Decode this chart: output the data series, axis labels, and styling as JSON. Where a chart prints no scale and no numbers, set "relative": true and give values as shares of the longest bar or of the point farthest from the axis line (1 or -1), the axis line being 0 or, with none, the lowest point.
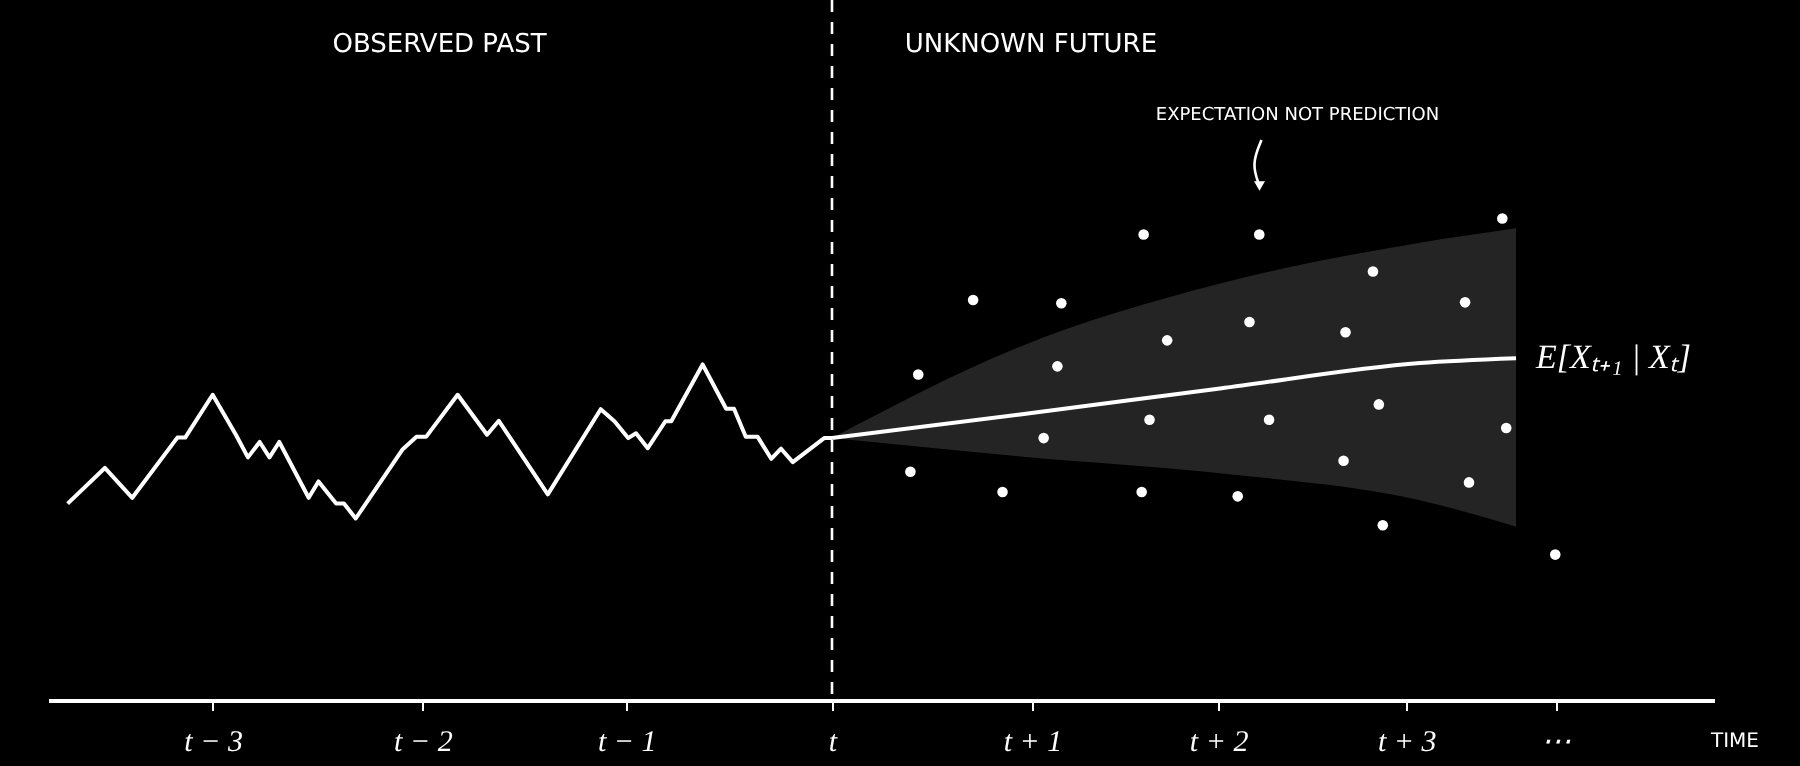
{
  "chart_data": {
    "type": "line",
    "relative": true,
    "xlabel": "TIME",
    "annotations": [
      "OBSERVED PAST",
      "UNKNOWN FUTURE",
      "EXPECTATION NOT PREDICTION"
    ],
    "xlim": [
      -4,
      4.5
    ],
    "xticks": [
      {
        "value": -3.16,
        "label": "t − 3"
      },
      {
        "value": -2.09,
        "label": "t − 2"
      },
      {
        "value": -1.05,
        "label": "t − 1"
      },
      {
        "value": 0,
        "label": "t"
      },
      {
        "value": 1.02,
        "label": "t + 1"
      },
      {
        "value": 1.97,
        "label": "t + 2"
      },
      {
        "value": 2.93,
        "label": "t + 3"
      },
      {
        "value": 3.69,
        "label": "⋯"
      }
    ],
    "tick_labels": "x",
    "grid": false,
    "ref_lines": [
      {
        "axis": "x",
        "value": 0,
        "label": null,
        "color": "#ffffff",
        "line_style": "dashed"
      }
    ],
    "series": [
      {
        "color": "#ffffff",
        "x": [
          -3.9,
          -3.71,
          -3.57,
          -3.34,
          -3.3,
          -3.16,
          -3.04,
          -2.98,
          -2.92,
          -2.87,
          -2.82,
          -2.67,
          -2.62,
          -2.53,
          -2.49,
          -2.43,
          -2.19,
          -2.12,
          -2.07,
          -1.91,
          -1.76,
          -1.7,
          -1.45,
          -1.18,
          -1.11,
          -1.04,
          -1.0,
          -0.94,
          -0.85,
          -0.82,
          -0.66,
          -0.54,
          -0.5,
          -0.44,
          -0.38,
          -0.31,
          -0.26,
          -0.2,
          -0.04,
          0
        ],
        "values": [
          0.408,
          0.482,
          0.42,
          0.545,
          0.545,
          0.634,
          0.55,
          0.504,
          0.536,
          0.504,
          0.536,
          0.42,
          0.454,
          0.408,
          0.408,
          0.377,
          0.521,
          0.547,
          0.547,
          0.634,
          0.551,
          0.58,
          0.427,
          0.604,
          0.579,
          0.544,
          0.554,
          0.523,
          0.579,
          0.579,
          0.697,
          0.605,
          0.605,
          0.547,
          0.547,
          0.501,
          0.522,
          0.494,
          0.544,
          0.544
        ]
      },
      {
        "name": "E[Xₜ₊₁ | Xₜ]",
        "color": "#ffffff",
        "x": [
          0,
          0.96,
          1.98,
          3.0,
          3.49
        ],
        "values": [
          0.544,
          0.593,
          0.647,
          0.7,
          0.71
        ],
        "lower": [
          0.544,
          0.506,
          0.471,
          0.415,
          0.36
        ],
        "upper": [
          0.544,
          0.734,
          0.865,
          0.95,
          0.98
        ]
      },
      {
        "type": "scatter",
        "marker": "circle",
        "color": "#ffffff",
        "x": [
          1.59,
          2.18,
          3.42,
          0.72,
          1.17,
          2.76,
          3.23,
          2.13,
          1.71,
          2.62,
          0.44,
          1.15,
          2.79,
          1.62,
          2.23,
          3.44,
          1.08,
          2.61,
          0.4,
          3.25,
          0.87,
          1.58,
          2.07,
          2.81,
          3.69
        ],
        "values": [
          0.967,
          0.967,
          1.0,
          0.831,
          0.824,
          0.89,
          0.826,
          0.785,
          0.747,
          0.764,
          0.676,
          0.693,
          0.614,
          0.582,
          0.582,
          0.565,
          0.544,
          0.497,
          0.474,
          0.452,
          0.432,
          0.432,
          0.423,
          0.363,
          0.302
        ]
      }
    ]
  }
}
